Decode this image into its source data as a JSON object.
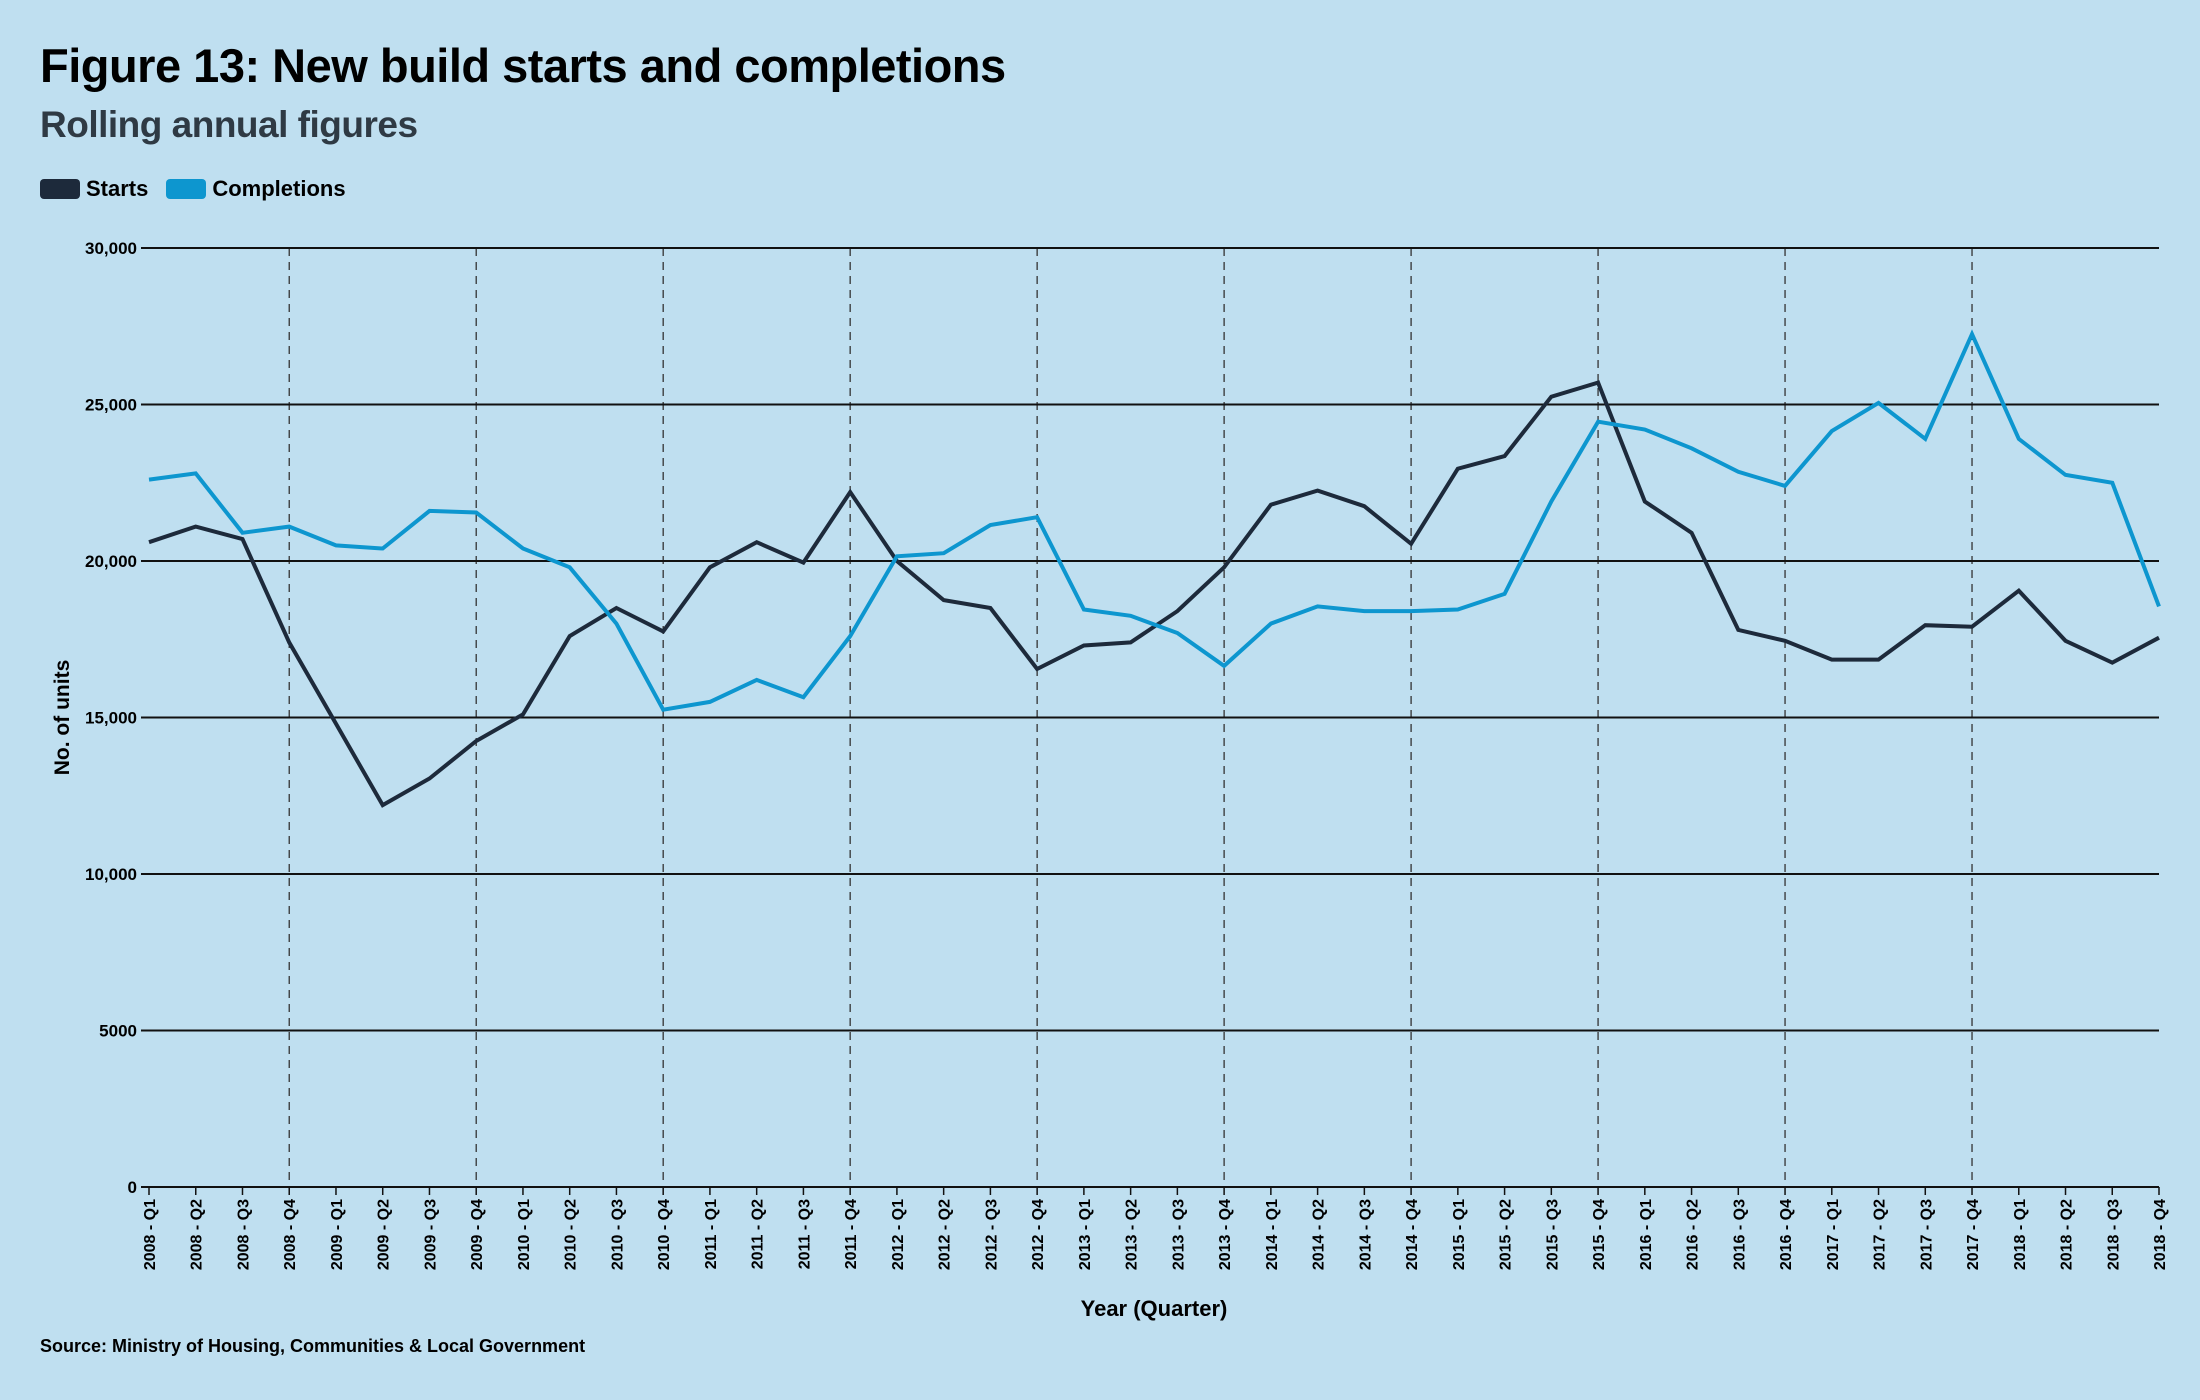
{
  "chart_data": {
    "type": "line",
    "title": "Figure 13: New build starts and completions",
    "subtitle": "Rolling annual figures",
    "xlabel": "Year (Quarter)",
    "ylabel": "No. of units",
    "ylim": [
      0,
      30000
    ],
    "yticks": [
      0,
      5000,
      10000,
      15000,
      20000,
      25000,
      30000
    ],
    "ytick_labels": [
      "0",
      "5000",
      "10,000",
      "15,000",
      "20,000",
      "25,000",
      "30,000"
    ],
    "grid": "horizontal solid; vertical dashed at each Q4",
    "legend": "top-left",
    "categories": [
      "2008 - Q1",
      "2008 - Q2",
      "2008 - Q3",
      "2008 - Q4",
      "2009 - Q1",
      "2009 - Q2",
      "2009 - Q3",
      "2009 - Q4",
      "2010 - Q1",
      "2010 - Q2",
      "2010 - Q3",
      "2010 - Q4",
      "2011 - Q1",
      "2011 - Q2",
      "2011 - Q3",
      "2011 - Q4",
      "2012 - Q1",
      "2012 - Q2",
      "2012 - Q3",
      "2012 - Q4",
      "2013 - Q1",
      "2013 - Q2",
      "2013 - Q3",
      "2013 - Q4",
      "2014 - Q1",
      "2014 - Q2",
      "2014 - Q3",
      "2014 - Q4",
      "2015 - Q1",
      "2015 - Q2",
      "2015 - Q3",
      "2015 - Q4",
      "2016 - Q1",
      "2016 - Q2",
      "2016 - Q3",
      "2016 - Q4",
      "2017 - Q1",
      "2017 - Q2",
      "2017 - Q3",
      "2017 - Q4",
      "2018 - Q1",
      "2018 - Q2",
      "2018 - Q3",
      "2018 - Q4"
    ],
    "series": [
      {
        "name": "Starts",
        "color": "#1d2a3b",
        "values": [
          20600,
          21100,
          20700,
          17400,
          14800,
          12200,
          13050,
          14250,
          15100,
          17600,
          18500,
          17750,
          19800,
          20600,
          19950,
          22200,
          20000,
          18750,
          18500,
          16550,
          17300,
          17400,
          18400,
          19800,
          21800,
          22250,
          21750,
          20550,
          22950,
          23350,
          25250,
          25700,
          21900,
          20900,
          17800,
          17450,
          16850,
          16850,
          17950,
          17900,
          19050,
          17450,
          16750,
          17550
        ]
      },
      {
        "name": "Completions",
        "color": "#0d96cf",
        "values": [
          22600,
          22800,
          20900,
          21100,
          20500,
          20400,
          21600,
          21550,
          20400,
          19800,
          18000,
          15250,
          15500,
          16200,
          15650,
          17600,
          20150,
          20250,
          21150,
          21400,
          18450,
          18250,
          17700,
          16650,
          18000,
          18550,
          18400,
          18400,
          18450,
          18950,
          21900,
          24450,
          24200,
          23600,
          22850,
          22400,
          24150,
          25050,
          23900,
          27250,
          23900,
          22750,
          22500,
          18550
        ]
      }
    ]
  },
  "source": "Source: Ministry of Housing, Communities & Local Government"
}
